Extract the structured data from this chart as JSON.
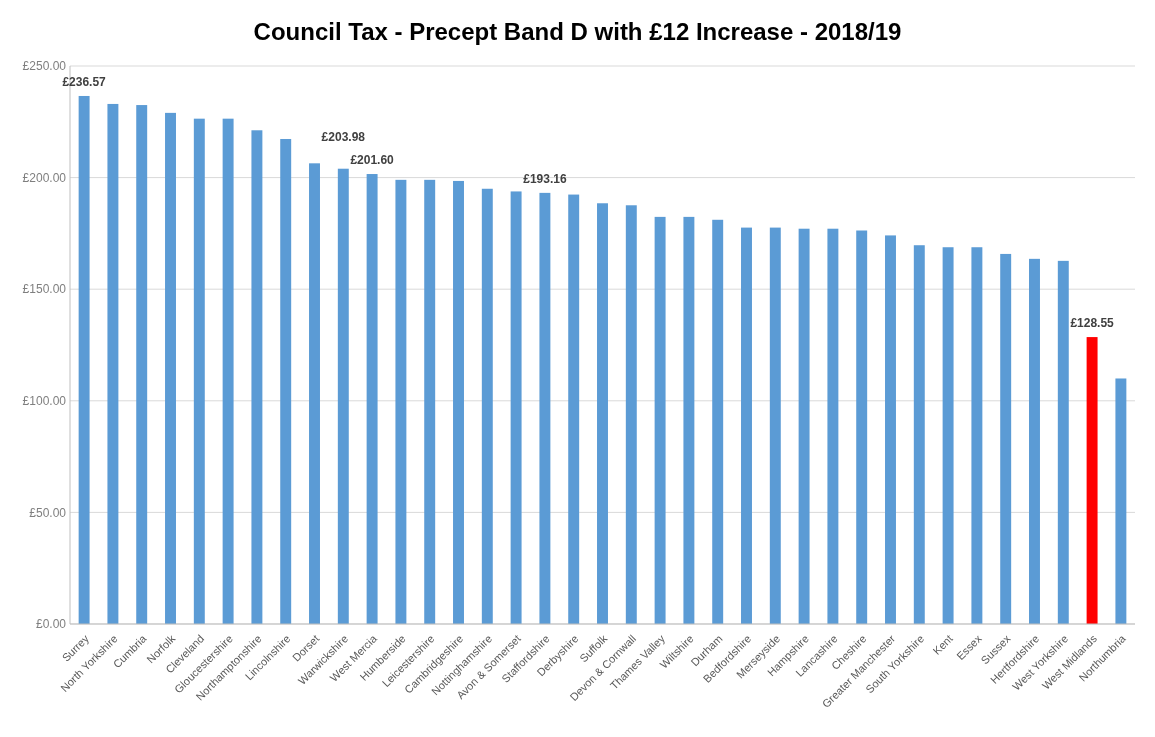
{
  "chart_data": {
    "type": "bar",
    "title": "Council Tax - Precept Band D with £12 Increase - 2018/19",
    "categories": [
      "Surrey",
      "North Yorkshire",
      "Cumbria",
      "Norfolk",
      "Cleveland",
      "Gloucestershire",
      "Northamptonshire",
      "Lincolnshire",
      "Dorset",
      "Warwickshire",
      "West Mercia",
      "Humberside",
      "Leicestershire",
      "Cambridgeshire",
      "Nottinghamshire",
      "Avon & Somerset",
      "Staffordshire",
      "Derbyshire",
      "Suffolk",
      "Devon & Cornwall",
      "Thames Valley",
      "Wiltshire",
      "Durham",
      "Bedfordshire",
      "Merseyside",
      "Hampshire",
      "Lancashire",
      "Cheshire",
      "Greater Manchester",
      "South Yorkshire",
      "Kent",
      "Essex",
      "Sussex",
      "Hertfordshire",
      "West Yorkshire",
      "West Midlands",
      "Northumbria"
    ],
    "values": [
      236.57,
      233.0,
      232.5,
      229.0,
      226.4,
      226.4,
      221.2,
      217.3,
      206.4,
      203.98,
      201.6,
      199.0,
      199.0,
      198.5,
      195.0,
      193.8,
      193.16,
      192.4,
      188.5,
      187.6,
      182.4,
      182.4,
      181.1,
      177.6,
      177.6,
      177.1,
      177.1,
      176.3,
      174.1,
      169.7,
      168.8,
      168.8,
      165.8,
      163.6,
      162.7,
      128.55,
      110.0
    ],
    "colors": [
      "#5b9bd5",
      "#5b9bd5",
      "#5b9bd5",
      "#5b9bd5",
      "#5b9bd5",
      "#5b9bd5",
      "#5b9bd5",
      "#5b9bd5",
      "#5b9bd5",
      "#5b9bd5",
      "#5b9bd5",
      "#5b9bd5",
      "#5b9bd5",
      "#5b9bd5",
      "#5b9bd5",
      "#5b9bd5",
      "#5b9bd5",
      "#5b9bd5",
      "#5b9bd5",
      "#5b9bd5",
      "#5b9bd5",
      "#5b9bd5",
      "#5b9bd5",
      "#5b9bd5",
      "#5b9bd5",
      "#5b9bd5",
      "#5b9bd5",
      "#5b9bd5",
      "#5b9bd5",
      "#5b9bd5",
      "#5b9bd5",
      "#5b9bd5",
      "#5b9bd5",
      "#5b9bd5",
      "#5b9bd5",
      "#ff0000",
      "#5b9bd5"
    ],
    "value_labels": [
      "£236.57",
      null,
      null,
      null,
      null,
      null,
      null,
      null,
      null,
      "£203.98",
      "£201.60",
      null,
      null,
      null,
      null,
      null,
      "£193.16",
      null,
      null,
      null,
      null,
      null,
      null,
      null,
      null,
      null,
      null,
      null,
      null,
      null,
      null,
      null,
      null,
      null,
      null,
      "£128.55",
      null
    ],
    "ylim": [
      0,
      250
    ],
    "yticks": [
      {
        "value": 0,
        "label": "£0.00"
      },
      {
        "value": 50,
        "label": "£50.00"
      },
      {
        "value": 100,
        "label": "£100.00"
      },
      {
        "value": 150,
        "label": "£150.00"
      },
      {
        "value": 200,
        "label": "£200.00"
      },
      {
        "value": 250,
        "label": "£250.00"
      }
    ],
    "grid": "y"
  }
}
